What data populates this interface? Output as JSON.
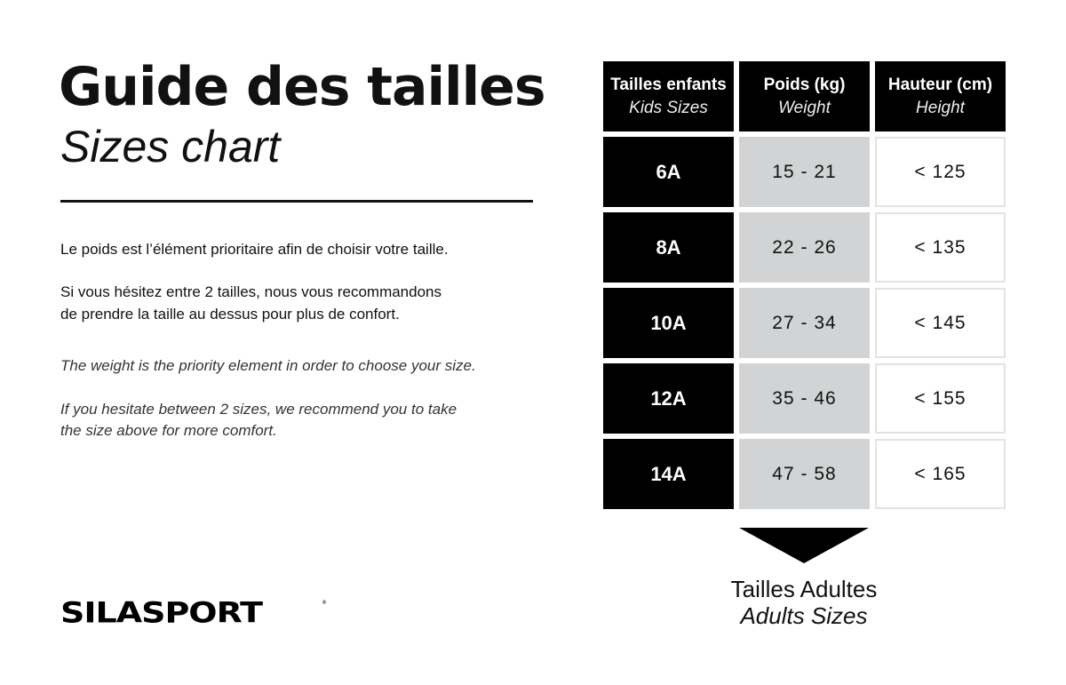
{
  "header": {
    "title": "Guide des tailles",
    "subtitle": "Sizes chart"
  },
  "text": {
    "fr_1": "Le poids est l’élément prioritaire afin de choisir votre taille.",
    "fr_2a": "Si vous hésitez entre 2 tailles, nous vous recommandons",
    "fr_2b": "de prendre la taille au dessus pour plus de confort.",
    "en_1": "The weight is the priority element in order to choose your size.",
    "en_2a": "If you hesitate between 2 sizes, we recommend you to take",
    "en_2b": "the size above for more comfort."
  },
  "table": {
    "columns": [
      {
        "label": "Tailles enfants",
        "sublabel": "Kids Sizes"
      },
      {
        "label": "Poids (kg)",
        "sublabel": "Weight"
      },
      {
        "label": "Hauteur (cm)",
        "sublabel": "Height"
      }
    ],
    "rows": [
      {
        "size": "6A",
        "weight": "15 - 21",
        "height": "< 125"
      },
      {
        "size": "8A",
        "weight": "22 - 26",
        "height": "< 135"
      },
      {
        "size": "10A",
        "weight": "27 - 34",
        "height": "< 145"
      },
      {
        "size": "12A",
        "weight": "35 - 46",
        "height": "< 155"
      },
      {
        "size": "14A",
        "weight": "47 - 58",
        "height": "< 165"
      }
    ]
  },
  "adults": {
    "label": "Tailles Adultes",
    "sublabel": "Adults Sizes"
  },
  "logo": {
    "text": "SILASPORT"
  },
  "colors": {
    "dark": "#000000",
    "weight_cell": "#d1d3d4"
  }
}
